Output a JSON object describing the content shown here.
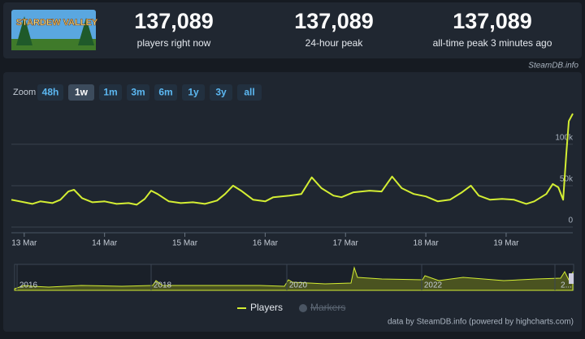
{
  "logo": "STARDEW VALLEY",
  "stats": [
    {
      "value": "137,089",
      "label": "players right now"
    },
    {
      "value": "137,089",
      "label": "24-hour peak"
    },
    {
      "value": "137,089",
      "label": "all-time peak 3 minutes ago"
    }
  ],
  "watermark": "SteamDB.info",
  "zoom": {
    "label": "Zoom",
    "buttons": [
      "48h",
      "1w",
      "1m",
      "3m",
      "6m",
      "1y",
      "3y",
      "all"
    ],
    "active": 1
  },
  "chart_data": {
    "type": "line",
    "x": [
      -0.16,
      0,
      0.1,
      0.2,
      0.35,
      0.45,
      0.55,
      0.62,
      0.72,
      0.85,
      1.0,
      1.15,
      1.3,
      1.4,
      1.5,
      1.58,
      1.66,
      1.8,
      1.95,
      2.1,
      2.25,
      2.4,
      2.5,
      2.6,
      2.7,
      2.85,
      3.0,
      3.1,
      3.3,
      3.45,
      3.58,
      3.7,
      3.85,
      3.95,
      4.1,
      4.3,
      4.45,
      4.58,
      4.7,
      4.85,
      5.0,
      5.15,
      5.3,
      5.45,
      5.56,
      5.66,
      5.8,
      5.95,
      6.1,
      6.25,
      6.35,
      6.5,
      6.58,
      6.65,
      6.71,
      6.75,
      6.78,
      6.83
    ],
    "series": [
      {
        "name": "Players",
        "color": "#d4ee33",
        "values": [
          33000,
          30000,
          28000,
          31000,
          29000,
          33000,
          43000,
          45000,
          35000,
          30000,
          31000,
          28000,
          29000,
          27000,
          34000,
          44000,
          40000,
          31000,
          29000,
          30000,
          28000,
          32000,
          40000,
          50000,
          44000,
          33000,
          31000,
          36000,
          38000,
          40000,
          60000,
          47000,
          38000,
          36000,
          42000,
          44000,
          43000,
          61000,
          47000,
          40000,
          37000,
          31000,
          33000,
          42000,
          50000,
          38000,
          33000,
          34000,
          33000,
          28000,
          31000,
          40000,
          52000,
          48000,
          33000,
          90000,
          128000,
          137000
        ]
      }
    ],
    "xlim": [
      -0.16,
      6.83
    ],
    "xticks": [
      {
        "value": 0,
        "label": "13 Mar"
      },
      {
        "value": 1,
        "label": "14 Mar"
      },
      {
        "value": 2,
        "label": "15 Mar"
      },
      {
        "value": 3,
        "label": "16 Mar"
      },
      {
        "value": 4,
        "label": "17 Mar"
      },
      {
        "value": 5,
        "label": "18 Mar"
      },
      {
        "value": 6,
        "label": "19 Mar"
      }
    ],
    "ylim": [
      0,
      142000
    ],
    "yticks": [
      0,
      {
        "value": 50000,
        "label": "50k"
      },
      {
        "value": 100000,
        "label": "100k"
      }
    ],
    "grid": true,
    "legend_disabled": "Markers"
  },
  "navigator": {
    "labels": [
      "2016",
      "2018",
      "2020",
      "2022",
      "2..."
    ]
  },
  "credits": "data by SteamDB.info (powered by highcharts.com)"
}
